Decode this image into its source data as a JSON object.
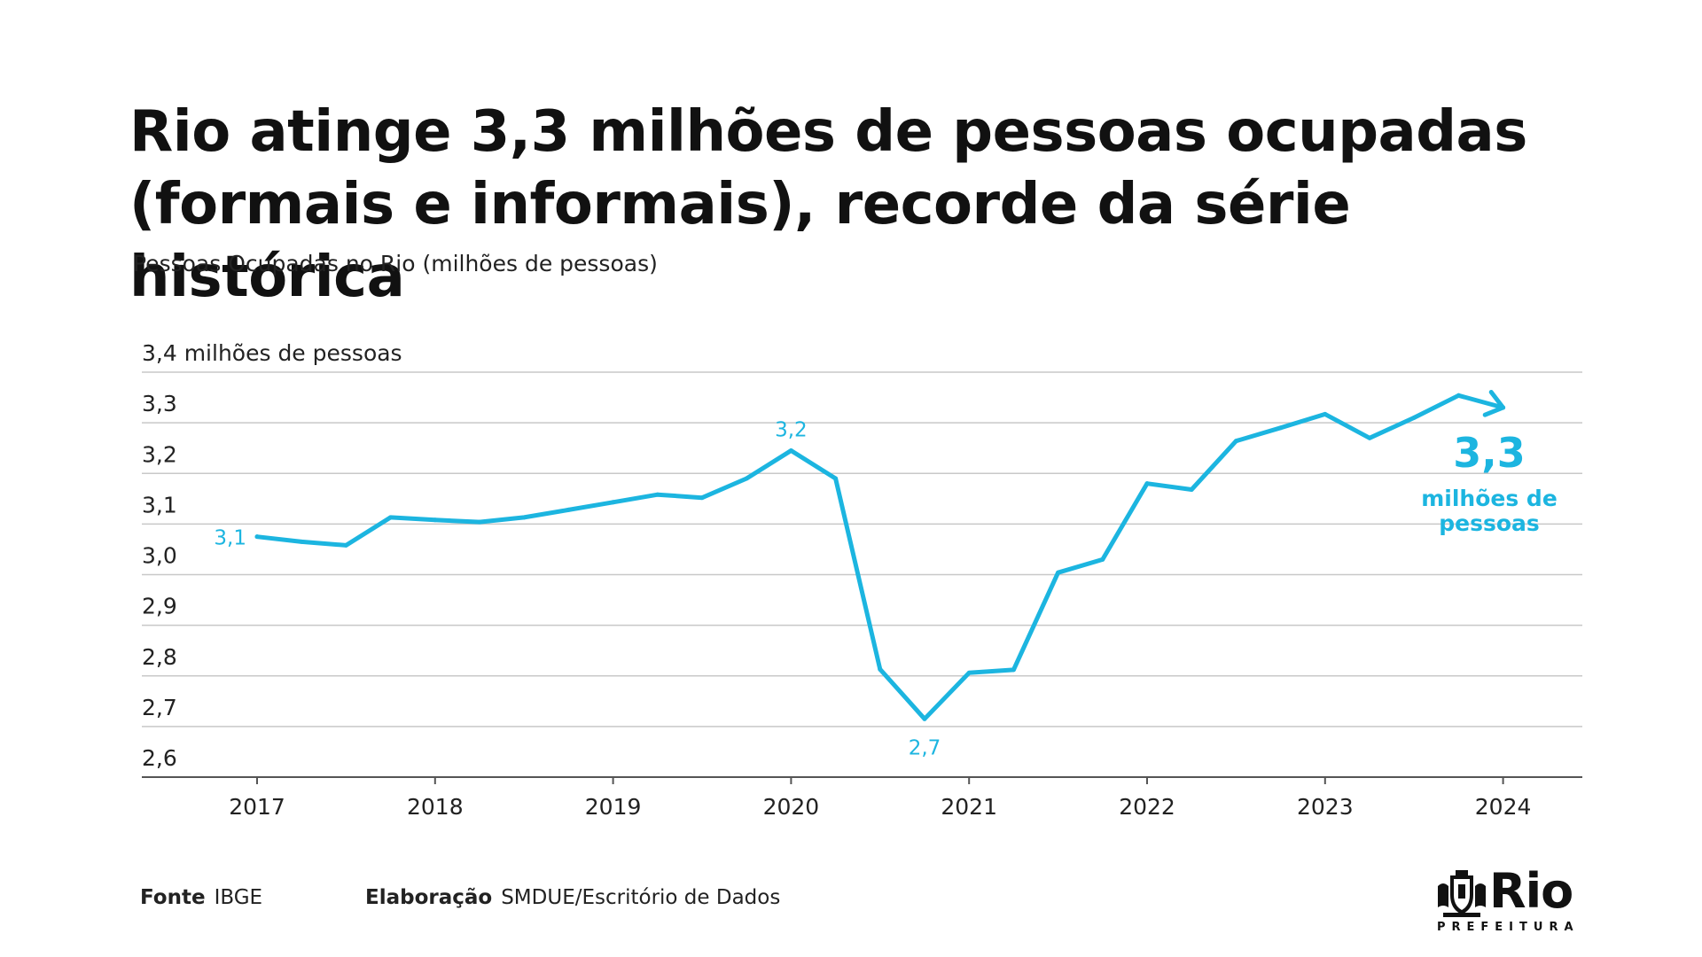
{
  "header": {
    "title_line1": "Rio atinge 3,3 milhões de pessoas ocupadas",
    "title_line2": "(formais e informais), recorde da série histórica",
    "subtitle": "Pessoas Ocupadas no Rio (milhões de pessoas)"
  },
  "footer": {
    "source_label": "Fonte",
    "source_value": "IBGE",
    "credit_label": "Elaboração",
    "credit_value": "SMDUE/Escritório de Dados"
  },
  "logo": {
    "name": "Rio",
    "sub": "PREFEITURA"
  },
  "colors": {
    "line": "#1cb5e0",
    "grid": "#c8c8c8",
    "axis": "#555555",
    "text": "#111111"
  },
  "chart_data": {
    "type": "line",
    "title": "",
    "xlabel": "",
    "ylabel": "",
    "ylim": [
      2.6,
      3.4
    ],
    "y_ticks": [
      {
        "v": 3.4,
        "label": "3,4 milhões de pessoas"
      },
      {
        "v": 3.3,
        "label": "3,3"
      },
      {
        "v": 3.2,
        "label": "3,2"
      },
      {
        "v": 3.1,
        "label": "3,1"
      },
      {
        "v": 3.0,
        "label": "3,0"
      },
      {
        "v": 2.9,
        "label": "2,9"
      },
      {
        "v": 2.8,
        "label": "2,8"
      },
      {
        "v": 2.7,
        "label": "2,7"
      },
      {
        "v": 2.6,
        "label": "2,6"
      }
    ],
    "x_ticks": [
      {
        "v": 0,
        "label": "2017"
      },
      {
        "v": 4,
        "label": "2018"
      },
      {
        "v": 8,
        "label": "2019"
      },
      {
        "v": 12,
        "label": "2020"
      },
      {
        "v": 16,
        "label": "2021"
      },
      {
        "v": 20,
        "label": "2022"
      },
      {
        "v": 24,
        "label": "2023"
      },
      {
        "v": 28,
        "label": "2024"
      }
    ],
    "grid": true,
    "series": [
      {
        "values": [
          3.075,
          3.065,
          3.058,
          3.113,
          3.108,
          3.104,
          3.113,
          3.128,
          3.143,
          3.158,
          3.152,
          3.19,
          3.245,
          3.19,
          2.813,
          2.715,
          2.806,
          2.812,
          3.004,
          3.03,
          3.18,
          3.168,
          3.264,
          3.29,
          3.317,
          3.27,
          3.31,
          3.354,
          3.33
        ]
      }
    ],
    "annotations": [
      {
        "index": 0,
        "text": "3,1",
        "pos": "left"
      },
      {
        "index": 12,
        "text": "3,2",
        "pos": "above"
      },
      {
        "index": 15,
        "text": "2,7",
        "pos": "below"
      }
    ],
    "callout": {
      "value": "3,3",
      "line1": "milhões de",
      "line2": "pessoas"
    }
  }
}
